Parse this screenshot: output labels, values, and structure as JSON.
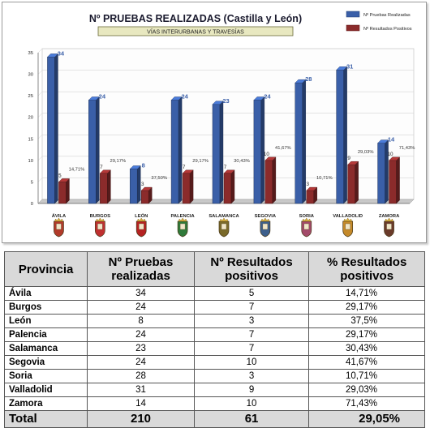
{
  "chart_data": {
    "type": "bar",
    "title": "Nº PRUEBAS REALIZADAS (Castilla y León)",
    "subtitle": "VÍAS INTERURBANAS Y TRAVESÍAS",
    "categories": [
      "ÁVILA",
      "BURGOS",
      "LEÓN",
      "PALENCIA",
      "SALAMANCA",
      "SEGOVIA",
      "SORIA",
      "VALLADOLID",
      "ZAMORA"
    ],
    "series": [
      {
        "name": "Nº Pruebas Realizadas",
        "values": [
          34,
          24,
          8,
          24,
          23,
          24,
          28,
          31,
          14
        ],
        "color": "#3a5fa8"
      },
      {
        "name": "Nº Resultados Positivos",
        "values": [
          5,
          7,
          3,
          7,
          7,
          10,
          3,
          9,
          10
        ],
        "color": "#8b2b2b"
      }
    ],
    "percent_labels": [
      "14,71%",
      "29,17%",
      "37,50%",
      "29,17%",
      "30,43%",
      "41,67%",
      "10,71%",
      "29,03%",
      "71,43%"
    ],
    "yticks": [
      0,
      5,
      10,
      15,
      20,
      25,
      30,
      35
    ],
    "ylim": [
      0,
      35
    ],
    "legend_position": "top-right",
    "grid": true,
    "crest_icons": [
      "avila-crest-icon",
      "burgos-crest-icon",
      "leon-crest-icon",
      "palencia-crest-icon",
      "salamanca-crest-icon",
      "segovia-crest-icon",
      "soria-crest-icon",
      "valladolid-crest-icon",
      "zamora-crest-icon"
    ]
  },
  "table": {
    "headers": [
      "Provincia",
      "Nº Pruebas realizadas",
      "Nº Resultados positivos",
      "% Resultados positivos"
    ],
    "rows": [
      [
        "Ávila",
        "34",
        "5",
        "14,71%"
      ],
      [
        "Burgos",
        "24",
        "7",
        "29,17%"
      ],
      [
        "León",
        "8",
        "3",
        "37,5%"
      ],
      [
        "Palencia",
        "24",
        "7",
        "29,17%"
      ],
      [
        "Salamanca",
        "23",
        "7",
        "30,43%"
      ],
      [
        "Segovia",
        "24",
        "10",
        "41,67%"
      ],
      [
        "Soria",
        "28",
        "3",
        "10,71%"
      ],
      [
        "Valladolid",
        "31",
        "9",
        "29,03%"
      ],
      [
        "Zamora",
        "14",
        "10",
        "71,43%"
      ]
    ],
    "total": [
      "Total",
      "210",
      "61",
      "29,05%"
    ]
  }
}
